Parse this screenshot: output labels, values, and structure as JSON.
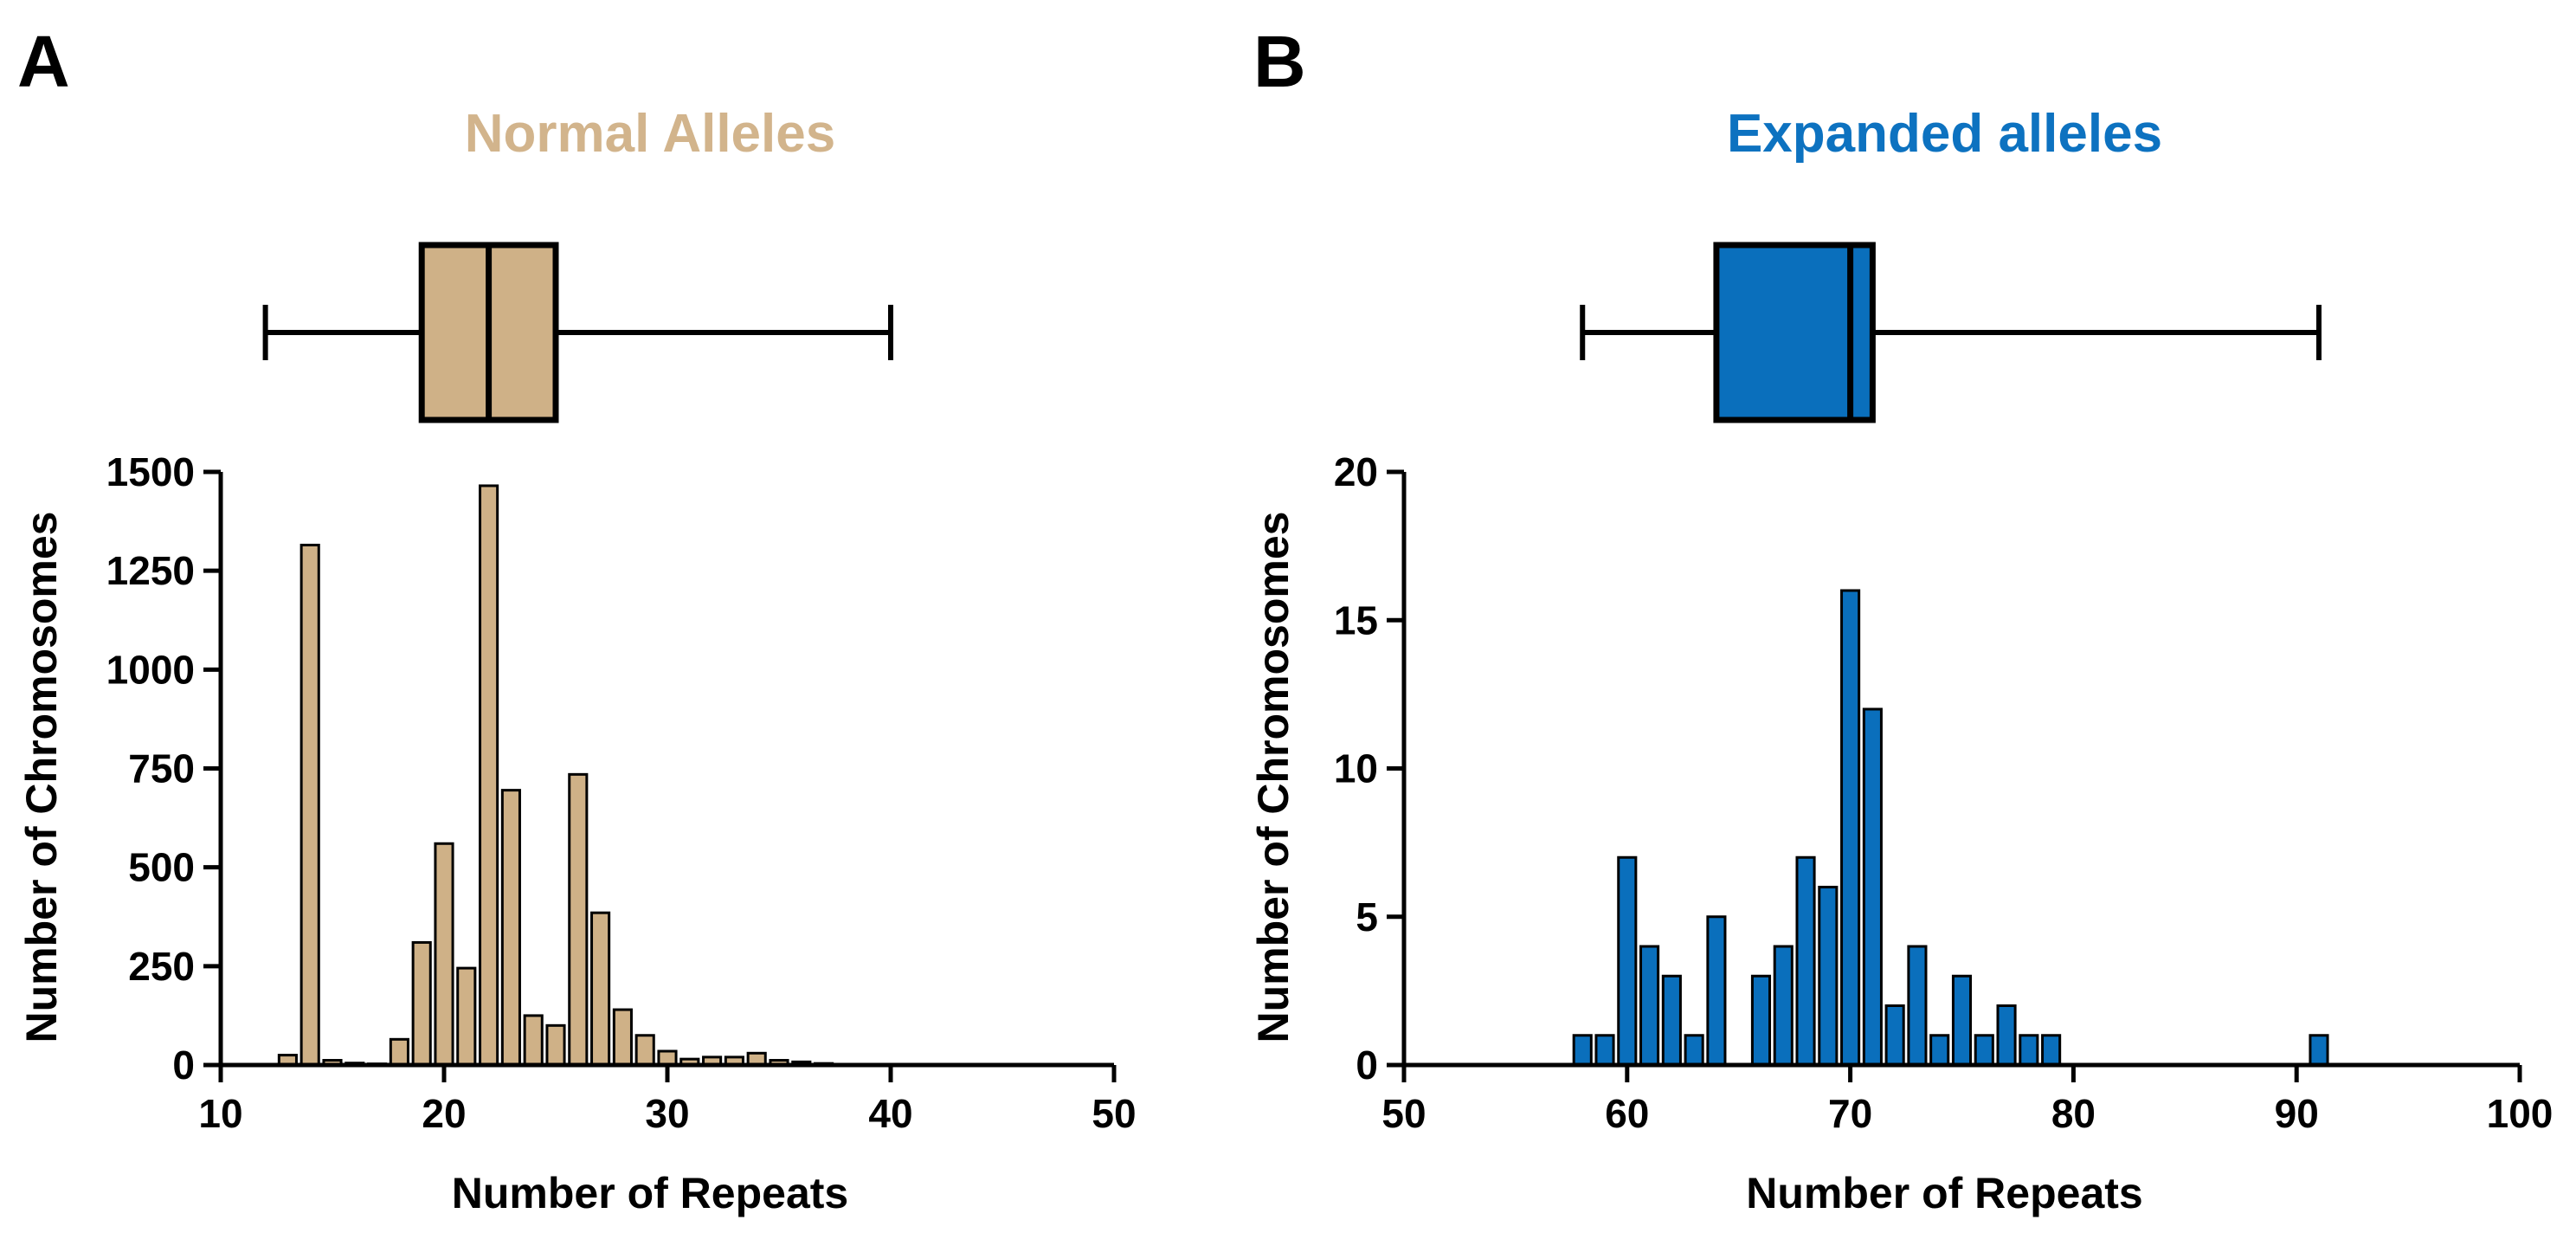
{
  "chart_data": [
    {
      "type": "bar",
      "panel": "A",
      "title": "Normal Alleles",
      "color": "#cfb187",
      "title_color": "#d2b48c",
      "xlabel": "Number of Repeats",
      "ylabel": "Number of Chromosomes",
      "xlim": [
        10,
        50
      ],
      "ylim": [
        0,
        1500
      ],
      "xticks": [
        10,
        20,
        30,
        40,
        50
      ],
      "yticks": [
        0,
        250,
        500,
        750,
        1000,
        1250,
        1500
      ],
      "ytick_labels": [
        "0",
        "250",
        "500",
        "750",
        "1000",
        "1250",
        "1500"
      ],
      "x": [
        13,
        14,
        15,
        16,
        17,
        18,
        19,
        20,
        21,
        22,
        23,
        24,
        25,
        26,
        27,
        28,
        29,
        30,
        31,
        32,
        33,
        34,
        35,
        36,
        37
      ],
      "values": [
        25,
        1315,
        12,
        5,
        3,
        65,
        310,
        560,
        245,
        1465,
        695,
        125,
        100,
        735,
        385,
        140,
        75,
        35,
        15,
        20,
        20,
        30,
        12,
        8,
        4
      ],
      "boxplot": {
        "min": 12,
        "q1": 19,
        "median": 22,
        "q3": 25,
        "max": 40
      }
    },
    {
      "type": "bar",
      "panel": "B",
      "title": "Expanded alleles",
      "color": "#0a6fbc",
      "title_color": "#0d72c0",
      "xlabel": "Number of Repeats",
      "ylabel": "Number of Chromosomes",
      "xlim": [
        50,
        100
      ],
      "ylim": [
        0,
        20
      ],
      "xticks": [
        50,
        60,
        70,
        80,
        90,
        100
      ],
      "yticks": [
        0,
        5,
        10,
        15,
        20
      ],
      "ytick_labels": [
        "0",
        "5",
        "10",
        "15",
        "20"
      ],
      "x": [
        58,
        59,
        60,
        61,
        62,
        63,
        64,
        66,
        67,
        68,
        69,
        70,
        71,
        72,
        73,
        74,
        75,
        76,
        77,
        78,
        79,
        91
      ],
      "values": [
        1,
        1,
        7,
        4,
        3,
        1,
        5,
        3,
        4,
        7,
        6,
        16,
        12,
        2,
        4,
        1,
        3,
        1,
        2,
        1,
        1,
        1
      ],
      "boxplot": {
        "min": 58,
        "q1": 64,
        "median": 70,
        "q3": 71,
        "max": 91
      }
    }
  ]
}
